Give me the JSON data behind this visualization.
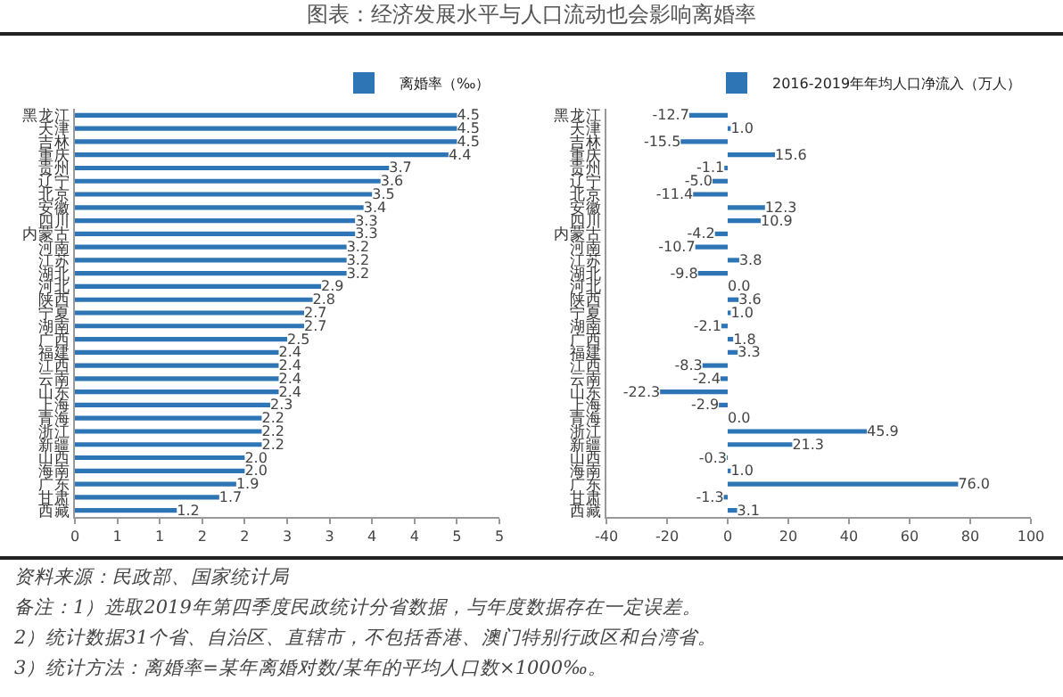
{
  "chart_data": [
    {
      "type": "bar",
      "title": "图表：经济发展水平与人口流动也会影响离婚率",
      "orientation": "horizontal",
      "legend": "top right",
      "categories": [
        "黑龙江",
        "天津",
        "吉林",
        "重庆",
        "贵州",
        "辽宁",
        "北京",
        "安徽",
        "四川",
        "内蒙古",
        "河南",
        "江苏",
        "湖北",
        "河北",
        "陕西",
        "宁夏",
        "湖南",
        "广西",
        "福建",
        "江西",
        "云南",
        "山东",
        "上海",
        "青海",
        "浙江",
        "新疆",
        "山西",
        "海南",
        "广东",
        "甘肃",
        "西藏"
      ],
      "series": [
        {
          "name": "离婚率（‰）",
          "color": "#2e75b6",
          "values": [
            4.5,
            4.5,
            4.5,
            4.4,
            3.7,
            3.6,
            3.5,
            3.4,
            3.3,
            3.3,
            3.2,
            3.2,
            3.2,
            2.9,
            2.8,
            2.7,
            2.7,
            2.5,
            2.4,
            2.4,
            2.4,
            2.4,
            2.3,
            2.2,
            2.2,
            2.2,
            2.0,
            2.0,
            1.9,
            1.7,
            1.2
          ],
          "value_labels": [
            "4.5",
            "4.5",
            "4.5",
            "4.4",
            "3.7",
            "3.6",
            "3.5",
            "3.4",
            "3.3",
            "3.3",
            "3.2",
            "3.2",
            "3.2",
            "2.9",
            "2.8",
            "2.7",
            "2.7",
            "2.5",
            "2.4",
            "2.4",
            "2.4",
            "2.4",
            "2.3",
            "2.2",
            "2.2",
            "2.2",
            "2.0",
            "2.0",
            "1.9",
            "1.7",
            "1.2"
          ]
        }
      ],
      "xlim": [
        0,
        5
      ],
      "xticks": [
        0,
        {
          "value": 0.5,
          "label": "1"
        },
        1,
        {
          "value": 1.5,
          "label": "2"
        },
        2,
        {
          "value": 2.5,
          "label": "3"
        },
        3,
        {
          "value": 3.5,
          "label": "4"
        },
        4,
        {
          "value": 4.5,
          "label": "5"
        },
        5
      ],
      "annotations": [
        "资料来源：民政部、国家统计局",
        "备注：1）选取2019年第四季度民政统计分省数据，与年度数据存在一定误差。",
        "2）统计数据31个省、自治区、直辖市，不包括香港、澳门特别行政区和台湾省。",
        "3）统计方法：离婚率=某年离婚对数/某年的平均人口数×1000‰。"
      ]
    },
    {
      "type": "bar",
      "orientation": "horizontal",
      "legend": "top right",
      "categories": [
        "黑龙江",
        "天津",
        "吉林",
        "重庆",
        "贵州",
        "辽宁",
        "北京",
        "安徽",
        "四川",
        "内蒙古",
        "河南",
        "江苏",
        "湖北",
        "河北",
        "陕西",
        "宁夏",
        "湖南",
        "广西",
        "福建",
        "江西",
        "云南",
        "山东",
        "上海",
        "青海",
        "浙江",
        "新疆",
        "山西",
        "海南",
        "广东",
        "甘肃",
        "西藏"
      ],
      "series": [
        {
          "name": "2016-2019年年均人口净流入（万人）",
          "color": "#2e75b6",
          "values": [
            -12.7,
            1.0,
            -15.5,
            15.6,
            -1.1,
            -5.0,
            -11.4,
            12.3,
            10.9,
            -4.2,
            -10.7,
            3.8,
            -9.8,
            0.0,
            3.6,
            1.0,
            -2.1,
            1.8,
            3.3,
            -8.3,
            -2.4,
            -22.3,
            -2.9,
            0.0,
            45.9,
            21.3,
            -0.3,
            1.0,
            76.0,
            -1.3,
            3.1
          ],
          "value_labels": [
            "-12.7",
            "1.0",
            "-15.5",
            "15.6",
            "-1.1",
            "-5.0",
            "-11.4",
            "12.3",
            "10.9",
            "-4.2",
            "-10.7",
            "3.8",
            "-9.8",
            "0.0",
            "3.6",
            "1.0",
            "-2.1",
            "1.8",
            "3.3",
            "-8.3",
            "-2.4",
            "-22.3",
            "-2.9",
            "0.0",
            "45.9",
            "21.3",
            "-0.3",
            "1.0",
            "76.0",
            "-1.3",
            "3.1"
          ]
        }
      ],
      "xlim": [
        -40,
        100
      ],
      "xticks": [
        -40,
        -20,
        0,
        20,
        40,
        60,
        80,
        100
      ]
    }
  ]
}
